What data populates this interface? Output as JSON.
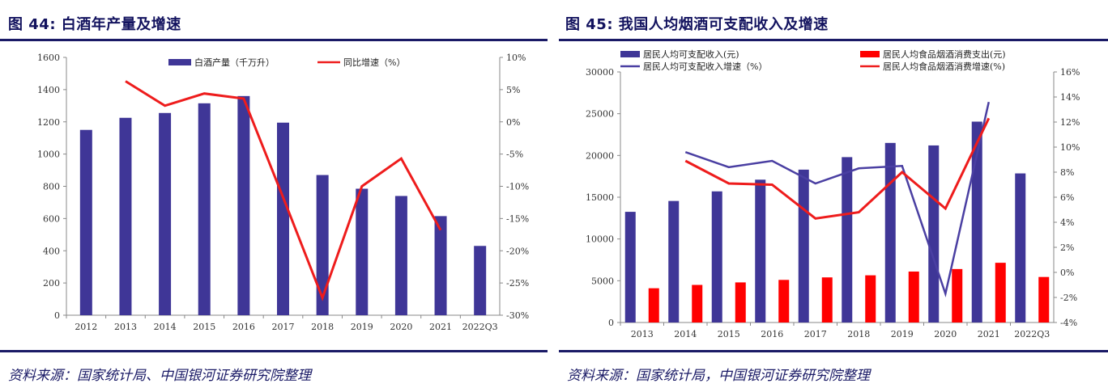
{
  "chart_data": [
    {
      "type": "bar+line",
      "figure_label": "图 44: 白酒年产量及增速",
      "categories": [
        "2012",
        "2013",
        "2014",
        "2015",
        "2016",
        "2017",
        "2018",
        "2019",
        "2020",
        "2021",
        "2022Q3"
      ],
      "series": [
        {
          "name": "白酒产量（千万升）",
          "kind": "bar",
          "axis": "left",
          "color": "#3f3697",
          "values": [
            1150,
            1225,
            1255,
            1315,
            1360,
            1195,
            870,
            785,
            740,
            615,
            430
          ]
        },
        {
          "name": "同比增速（%）",
          "kind": "line",
          "axis": "right",
          "color": "#ee1c1c",
          "values": [
            null,
            6.3,
            2.5,
            4.4,
            3.6,
            -11.7,
            -27.3,
            -10.0,
            -5.7,
            -16.8,
            null
          ]
        }
      ],
      "y_left": {
        "min": 0,
        "max": 1600,
        "step": 200,
        "ticks": [
          "0",
          "200",
          "400",
          "600",
          "800",
          "1000",
          "1200",
          "1400",
          "1600"
        ]
      },
      "y_right": {
        "min": -30,
        "max": 10,
        "step": 5,
        "ticks": [
          "-30%",
          "-25%",
          "-20%",
          "-15%",
          "-10%",
          "-5%",
          "0%",
          "5%",
          "10%"
        ]
      },
      "legend": {
        "placement": "top-center",
        "items": [
          "白酒产量（千万升）",
          "同比增速（%）"
        ]
      },
      "source": "资料来源：国家统计局、中国银河证券研究院整理"
    },
    {
      "type": "bar+line",
      "figure_label": "图 45: 我国人均烟酒可支配收入及增速",
      "categories": [
        "2013",
        "2014",
        "2015",
        "2016",
        "2017",
        "2018",
        "2019",
        "2020",
        "2021",
        "2022Q3"
      ],
      "series": [
        {
          "name": "居民人均可支配收入(元)",
          "kind": "bar",
          "axis": "left",
          "color": "#3f3697",
          "values": [
            13250,
            14550,
            15700,
            17100,
            18300,
            19800,
            21500,
            21200,
            24050,
            17850
          ]
        },
        {
          "name": "居民人均食品烟酒消费支出(元)",
          "kind": "bar",
          "axis": "left",
          "color": "#ff0000",
          "values": [
            4100,
            4500,
            4800,
            5100,
            5400,
            5650,
            6100,
            6400,
            7150,
            5450
          ]
        },
        {
          "name": "居民人均可支配收入增速（%）",
          "kind": "line",
          "axis": "right",
          "color": "#4a3fa2",
          "values": [
            null,
            9.6,
            8.4,
            8.9,
            7.1,
            8.3,
            8.5,
            -1.7,
            13.6,
            null
          ]
        },
        {
          "name": "居民人均食品烟酒消费增速(%)",
          "kind": "line",
          "axis": "right",
          "color": "#ee1c1c",
          "values": [
            null,
            8.9,
            7.1,
            7.0,
            4.3,
            4.8,
            8.0,
            5.1,
            12.3,
            null
          ]
        }
      ],
      "y_left": {
        "min": 0,
        "max": 30000,
        "step": 5000,
        "ticks": [
          "0",
          "5000",
          "10000",
          "15000",
          "20000",
          "25000",
          "30000"
        ]
      },
      "y_right": {
        "min": -4,
        "max": 16,
        "step": 2,
        "ticks": [
          "-4%",
          "-2%",
          "0%",
          "2%",
          "4%",
          "6%",
          "8%",
          "10%",
          "12%",
          "14%",
          "16%"
        ]
      },
      "legend": {
        "placement": "top",
        "items": [
          "居民人均可支配收入(元)",
          "居民人均食品烟酒消费支出(元)",
          "居民人均可支配收入增速（%）",
          "居民人均食品烟酒消费增速(%)"
        ]
      },
      "source": "资料来源：国家统计局，中国银河证券研究院整理"
    }
  ]
}
